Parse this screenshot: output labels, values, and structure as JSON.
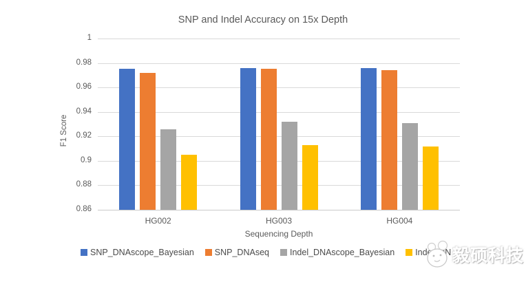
{
  "watermark": {
    "text": "毅硕科技",
    "logo": "mascot-face-icon"
  },
  "chart_data": {
    "type": "bar",
    "title": "SNP and Indel Accuracy on 15x Depth",
    "xlabel": "Sequencing Depth",
    "ylabel": "F1 Score",
    "categories": [
      "HG002",
      "HG003",
      "HG004"
    ],
    "series": [
      {
        "name": "SNP_DNAscope_Bayesian",
        "color": "#4472C4",
        "values": [
          0.975,
          0.976,
          0.976
        ]
      },
      {
        "name": "SNP_DNAseq",
        "color": "#ED7D31",
        "values": [
          0.972,
          0.975,
          0.974
        ]
      },
      {
        "name": "Indel_DNAscope_Bayesian",
        "color": "#A5A5A5",
        "values": [
          0.926,
          0.932,
          0.931
        ]
      },
      {
        "name": "Indel_DNAseq",
        "color": "#FFC000",
        "values": [
          0.905,
          0.913,
          0.912
        ]
      }
    ],
    "ylim": [
      0.86,
      1.0
    ],
    "yticks": [
      "1",
      "0.98",
      "0.96",
      "0.94",
      "0.92",
      "0.9",
      "0.88",
      "0.86"
    ],
    "grid": true,
    "gridline_color": "#d9d9d9",
    "legend_position": "bottom",
    "text_color": "#595959"
  }
}
